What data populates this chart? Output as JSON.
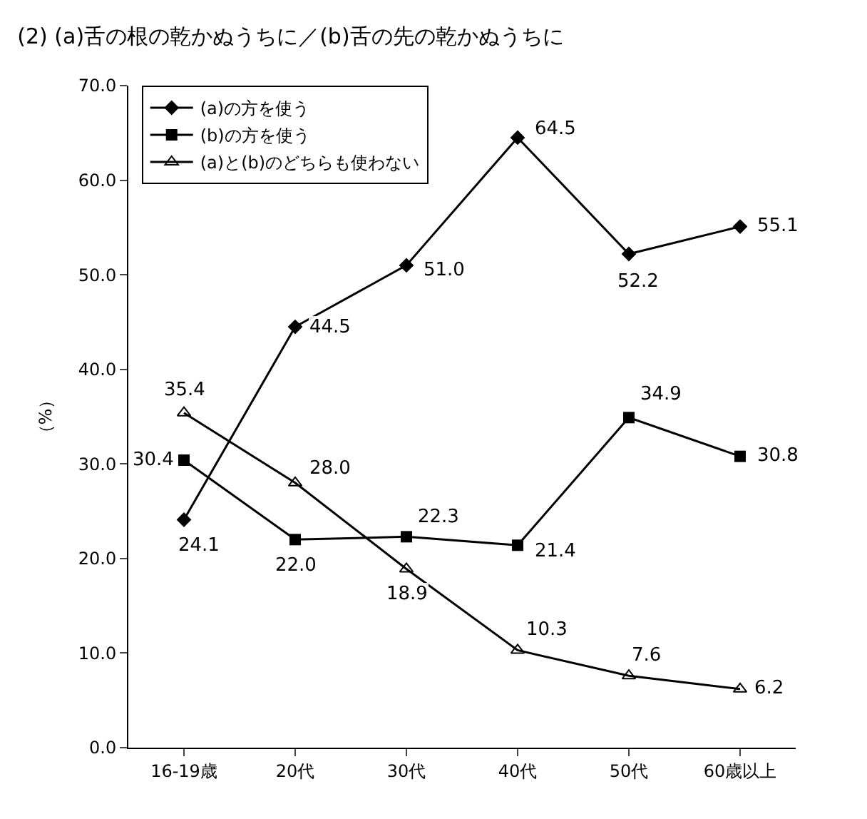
{
  "chart_data": {
    "type": "line",
    "title": "(2) (a)舌の根の乾かぬうちに／(b)舌の先の乾かぬうちに",
    "ylabel": "（%）",
    "categories": [
      "16-19歳",
      "20代",
      "30代",
      "40代",
      "50代",
      "60歳以上"
    ],
    "series": [
      {
        "name": "(a)の方を使う",
        "color": "#000000",
        "marker": "diamond",
        "values": [
          24.1,
          44.5,
          51.0,
          64.5,
          52.2,
          55.1
        ],
        "value_labels": [
          "24.1",
          "44.5",
          "51.0",
          "64.5",
          "52.2",
          "55.1"
        ]
      },
      {
        "name": "(b)の方を使う",
        "color": "#000000",
        "marker": "square",
        "values": [
          30.4,
          22.0,
          22.3,
          21.4,
          34.9,
          30.8
        ],
        "value_labels": [
          "30.4",
          "22.0",
          "22.3",
          "21.4",
          "34.9",
          "30.8"
        ]
      },
      {
        "name": "(a)と(b)のどちらも使わない",
        "color": "#000000",
        "marker": "triangle",
        "values": [
          35.4,
          28.0,
          18.9,
          10.3,
          7.6,
          6.2
        ],
        "value_labels": [
          "35.4",
          "28.0",
          "18.9",
          "10.3",
          "7.6",
          "6.2"
        ]
      }
    ],
    "ylim": [
      0,
      70
    ],
    "yticks": [
      {
        "value": 0,
        "label": "0.0"
      },
      {
        "value": 10,
        "label": "10.0"
      },
      {
        "value": 20,
        "label": "20.0"
      },
      {
        "value": 30,
        "label": "30.0"
      },
      {
        "value": 40,
        "label": "40.0"
      },
      {
        "value": 50,
        "label": "50.0"
      },
      {
        "value": 60,
        "label": "60.0"
      },
      {
        "value": 70,
        "label": "70.0"
      }
    ],
    "legend": "top left",
    "grid": false,
    "line_style": "solid"
  }
}
